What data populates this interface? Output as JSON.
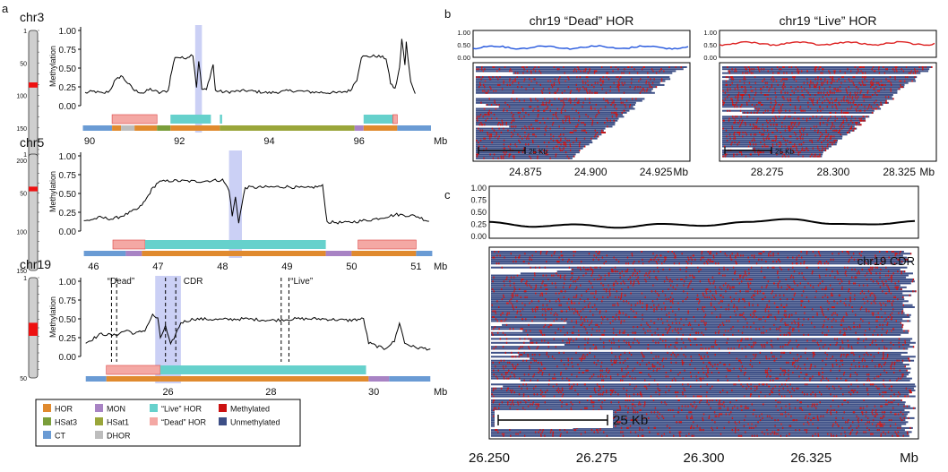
{
  "figure": {
    "panel_letters": {
      "a": "a",
      "b": "b",
      "c": "c"
    },
    "units_label": "Mb",
    "methylation_axis_label": "Methylation"
  },
  "colors": {
    "HOR": "#e08a2e",
    "MON": "#a883c4",
    "live_hor": "#66d1cc",
    "methylated": "#cc1111",
    "HSat3": "#7a9e3a",
    "HSat1": "#9aa63a",
    "dead_hor": "#f4a8a4",
    "unmethylated": "#3d4f86",
    "CT": "#6a9bd4",
    "DHOR": "#bdbdbd",
    "cdr_shade": "#cbd0f5",
    "b_dead_line": "#2255dd",
    "b_live_line": "#dd2222",
    "c_line": "#000000"
  },
  "legend": {
    "items": [
      {
        "label": "HOR",
        "color": "#e08a2e"
      },
      {
        "label": "MON",
        "color": "#a883c4"
      },
      {
        "label": "“Live” HOR",
        "color": "#66d1cc"
      },
      {
        "label": "Methylated",
        "color": "#cc1111"
      },
      {
        "label": "HSat3",
        "color": "#7a9e3a"
      },
      {
        "label": "HSat1",
        "color": "#9aa63a"
      },
      {
        "label": "“Dead” HOR",
        "color": "#f4a8a4"
      },
      {
        "label": "Unmethylated",
        "color": "#3d4f86"
      },
      {
        "label": "CT",
        "color": "#6a9bd4"
      },
      {
        "label": "DHOR",
        "color": "#bdbdbd"
      }
    ]
  },
  "chart_data": [
    {
      "id": "a_chr3",
      "type": "line",
      "title": "chr3",
      "ylabel": "Methylation",
      "xlim": [
        89.8,
        97.7
      ],
      "ylim": [
        0,
        1
      ],
      "yticks": [
        "0.00",
        "0.25",
        "0.50",
        "0.75",
        "1.00"
      ],
      "xticks": [
        {
          "v": 90,
          "label": "90"
        },
        {
          "v": 92,
          "label": "92"
        },
        {
          "v": 94,
          "label": "94"
        },
        {
          "v": 96,
          "label": "96"
        }
      ],
      "ideogram_ticks": [
        "1",
        "50",
        "100",
        "150",
        "200"
      ],
      "ideogram_mark": [
        0.4,
        0.44
      ],
      "shade": [
        [
          92.35,
          92.5
        ]
      ],
      "dashed": [],
      "line": [
        [
          89.9,
          0.17
        ],
        [
          90.1,
          0.19
        ],
        [
          90.3,
          0.16
        ],
        [
          90.45,
          0.2
        ],
        [
          90.55,
          0.32
        ],
        [
          90.7,
          0.4
        ],
        [
          90.85,
          0.3
        ],
        [
          91.0,
          0.2
        ],
        [
          91.2,
          0.17
        ],
        [
          91.35,
          0.22
        ],
        [
          91.55,
          0.17
        ],
        [
          91.75,
          0.2
        ],
        [
          91.8,
          0.38
        ],
        [
          91.9,
          0.65
        ],
        [
          92.1,
          0.63
        ],
        [
          92.3,
          0.68
        ],
        [
          92.38,
          0.25
        ],
        [
          92.43,
          0.6
        ],
        [
          92.5,
          0.22
        ],
        [
          92.6,
          0.21
        ],
        [
          92.75,
          0.55
        ],
        [
          92.8,
          0.2
        ],
        [
          93.0,
          0.18
        ],
        [
          93.5,
          0.2
        ],
        [
          94.0,
          0.17
        ],
        [
          94.5,
          0.2
        ],
        [
          95.0,
          0.18
        ],
        [
          95.5,
          0.17
        ],
        [
          95.8,
          0.2
        ],
        [
          95.95,
          0.35
        ],
        [
          96.05,
          0.65
        ],
        [
          96.4,
          0.66
        ],
        [
          96.6,
          0.63
        ],
        [
          96.7,
          0.3
        ],
        [
          96.8,
          0.22
        ],
        [
          96.9,
          0.5
        ],
        [
          96.95,
          0.88
        ],
        [
          97.02,
          0.55
        ],
        [
          97.05,
          0.84
        ],
        [
          97.15,
          0.32
        ],
        [
          97.25,
          0.16
        ]
      ],
      "tracks": [
        {
          "y": "top",
          "segs": [
            [
              90.5,
              91.5,
              "dead_hor"
            ],
            [
              91.8,
              92.7,
              "live_hor"
            ],
            [
              92.9,
              92.95,
              "live_hor"
            ],
            [
              96.1,
              96.8,
              "live_hor"
            ],
            [
              96.75,
              96.85,
              "dead_hor"
            ]
          ]
        },
        {
          "y": "bottom",
          "segs": [
            [
              89.85,
              90.5,
              "CT"
            ],
            [
              90.5,
              90.7,
              "HOR"
            ],
            [
              90.7,
              91.0,
              "DHOR"
            ],
            [
              91.0,
              91.5,
              "HOR"
            ],
            [
              91.5,
              91.8,
              "HSat3"
            ],
            [
              91.8,
              92.9,
              "HOR"
            ],
            [
              92.9,
              95.9,
              "HSat1"
            ],
            [
              95.9,
              96.1,
              "MON"
            ],
            [
              96.1,
              96.85,
              "HOR"
            ],
            [
              96.85,
              97.6,
              "CT"
            ]
          ]
        }
      ]
    },
    {
      "id": "a_chr5",
      "type": "line",
      "title": "chr5",
      "ylabel": "Methylation",
      "xlim": [
        45.8,
        51.3
      ],
      "ylim": [
        0,
        1
      ],
      "yticks": [
        "0.00",
        "0.25",
        "0.50",
        "0.75",
        "1.00"
      ],
      "xticks": [
        {
          "v": 46,
          "label": "46"
        },
        {
          "v": 47,
          "label": "47"
        },
        {
          "v": 48,
          "label": "48"
        },
        {
          "v": 49,
          "label": "49"
        },
        {
          "v": 50,
          "label": "50"
        },
        {
          "v": 51,
          "label": "51"
        }
      ],
      "ideogram_ticks": [
        "1",
        "50",
        "100",
        "150"
      ],
      "ideogram_mark": [
        0.28,
        0.32
      ],
      "shade": [
        [
          48.1,
          48.3
        ]
      ],
      "dashed": [],
      "line": [
        [
          45.85,
          0.13
        ],
        [
          46.1,
          0.18
        ],
        [
          46.3,
          0.16
        ],
        [
          46.5,
          0.22
        ],
        [
          46.7,
          0.3
        ],
        [
          46.8,
          0.4
        ],
        [
          46.9,
          0.55
        ],
        [
          47.0,
          0.65
        ],
        [
          47.2,
          0.67
        ],
        [
          47.6,
          0.66
        ],
        [
          48.0,
          0.68
        ],
        [
          48.1,
          0.55
        ],
        [
          48.15,
          0.2
        ],
        [
          48.2,
          0.45
        ],
        [
          48.25,
          0.12
        ],
        [
          48.35,
          0.58
        ],
        [
          48.5,
          0.58
        ],
        [
          49.0,
          0.59
        ],
        [
          49.3,
          0.57
        ],
        [
          49.55,
          0.6
        ],
        [
          49.62,
          0.12
        ],
        [
          49.9,
          0.11
        ],
        [
          50.3,
          0.15
        ],
        [
          50.7,
          0.22
        ],
        [
          51.0,
          0.2
        ],
        [
          51.2,
          0.13
        ]
      ],
      "tracks": [
        {
          "y": "top",
          "segs": [
            [
              46.3,
              46.8,
              "dead_hor"
            ],
            [
              46.8,
              49.6,
              "live_hor"
            ],
            [
              50.1,
              51.0,
              "dead_hor"
            ]
          ]
        },
        {
          "y": "bottom",
          "segs": [
            [
              45.85,
              46.5,
              "CT"
            ],
            [
              46.5,
              46.75,
              "MON"
            ],
            [
              46.75,
              49.6,
              "HOR"
            ],
            [
              49.6,
              50.0,
              "MON"
            ],
            [
              50.0,
              51.0,
              "HOR"
            ],
            [
              51.0,
              51.25,
              "CT"
            ]
          ]
        }
      ]
    },
    {
      "id": "a_chr19",
      "type": "line",
      "title": "chr19",
      "ylabel": "Methylation",
      "xlim": [
        24.3,
        31.2
      ],
      "ylim": [
        0,
        1
      ],
      "yticks": [
        "0.00",
        "0.25",
        "0.50",
        "0.75",
        "1.00"
      ],
      "xticks": [
        {
          "v": 26,
          "label": "26"
        },
        {
          "v": 28,
          "label": "28"
        },
        {
          "v": 30,
          "label": "30"
        }
      ],
      "ideogram_ticks": [
        "1",
        "50"
      ],
      "ideogram_mark": [
        0.45,
        0.58
      ],
      "shade": [
        [
          25.75,
          26.25
        ]
      ],
      "dashed": [
        24.9,
        25.0,
        25.95,
        26.15,
        28.2,
        28.35
      ],
      "annotations": {
        "dead": "“Dead”",
        "cdr": "CDR",
        "live": "“Live”"
      },
      "line": [
        [
          24.4,
          0.18
        ],
        [
          24.7,
          0.3
        ],
        [
          24.95,
          0.28
        ],
        [
          25.2,
          0.35
        ],
        [
          25.35,
          0.3
        ],
        [
          25.55,
          0.35
        ],
        [
          25.7,
          0.55
        ],
        [
          25.8,
          0.5
        ],
        [
          25.85,
          0.25
        ],
        [
          25.95,
          0.4
        ],
        [
          26.05,
          0.15
        ],
        [
          26.15,
          0.3
        ],
        [
          26.25,
          0.45
        ],
        [
          26.5,
          0.5
        ],
        [
          27.0,
          0.49
        ],
        [
          27.5,
          0.5
        ],
        [
          28.0,
          0.48
        ],
        [
          28.5,
          0.5
        ],
        [
          29.0,
          0.5
        ],
        [
          29.5,
          0.48
        ],
        [
          29.8,
          0.5
        ],
        [
          29.9,
          0.18
        ],
        [
          30.2,
          0.1
        ],
        [
          30.4,
          0.2
        ],
        [
          30.5,
          0.45
        ],
        [
          30.6,
          0.18
        ],
        [
          30.8,
          0.12
        ],
        [
          31.1,
          0.1
        ]
      ],
      "tracks": [
        {
          "y": "top",
          "segs": [
            [
              24.8,
              25.85,
              "dead_hor"
            ],
            [
              25.85,
              29.85,
              "live_hor"
            ]
          ]
        },
        {
          "y": "bottom",
          "segs": [
            [
              24.4,
              24.8,
              "CT"
            ],
            [
              24.8,
              25.85,
              "HOR"
            ],
            [
              25.85,
              29.9,
              "HOR"
            ],
            [
              29.9,
              30.3,
              "MON"
            ],
            [
              30.3,
              31.1,
              "CT"
            ]
          ]
        }
      ]
    },
    {
      "id": "b_dead",
      "type": "heatmap",
      "title": "chr19  “Dead”  HOR",
      "ylim": [
        0,
        1
      ],
      "yticks": [
        "0.00",
        "0.50",
        "1.00"
      ],
      "line_color": "b_dead_line",
      "line_level": 0.4,
      "xlim": [
        24.855,
        24.938
      ],
      "xticks": [
        {
          "v": 24.875,
          "label": "24.875"
        },
        {
          "v": 24.9,
          "label": "24.900"
        },
        {
          "v": 24.925,
          "label": "24.925"
        }
      ],
      "scalebar": "25  Kb",
      "methylated_fraction": 0.4
    },
    {
      "id": "b_live",
      "type": "heatmap",
      "title": "chr19  “Live” HOR",
      "ylim": [
        0,
        1
      ],
      "yticks": [
        "0.00",
        "0.50",
        "1.00"
      ],
      "line_color": "b_live_line",
      "line_level": 0.55,
      "xlim": [
        28.257,
        28.339
      ],
      "xticks": [
        {
          "v": 28.275,
          "label": "28.275"
        },
        {
          "v": 28.3,
          "label": "28.300"
        },
        {
          "v": 28.325,
          "label": "28.325"
        }
      ],
      "scalebar": "25  Kb",
      "methylated_fraction": 0.55
    },
    {
      "id": "c_cdr",
      "type": "heatmap",
      "title": "chr19 CDR",
      "ylim": [
        0,
        1
      ],
      "yticks": [
        "0.00",
        "0.25",
        "0.50",
        "0.75",
        "1.00"
      ],
      "line_color": "c_line",
      "line": [
        [
          26.25,
          0.3
        ],
        [
          26.26,
          0.2
        ],
        [
          26.27,
          0.25
        ],
        [
          26.28,
          0.18
        ],
        [
          26.29,
          0.26
        ],
        [
          26.3,
          0.22
        ],
        [
          26.31,
          0.3
        ],
        [
          26.32,
          0.36
        ],
        [
          26.33,
          0.26
        ],
        [
          26.34,
          0.25
        ],
        [
          26.35,
          0.32
        ]
      ],
      "xlim": [
        26.25,
        26.35
      ],
      "xticks": [
        {
          "v": 26.25,
          "label": "26.250"
        },
        {
          "v": 26.275,
          "label": "26.275"
        },
        {
          "v": 26.3,
          "label": "26.300"
        },
        {
          "v": 26.325,
          "label": "26.325"
        }
      ],
      "scalebar": "25  Kb",
      "methylated_fraction": 0.32
    }
  ]
}
